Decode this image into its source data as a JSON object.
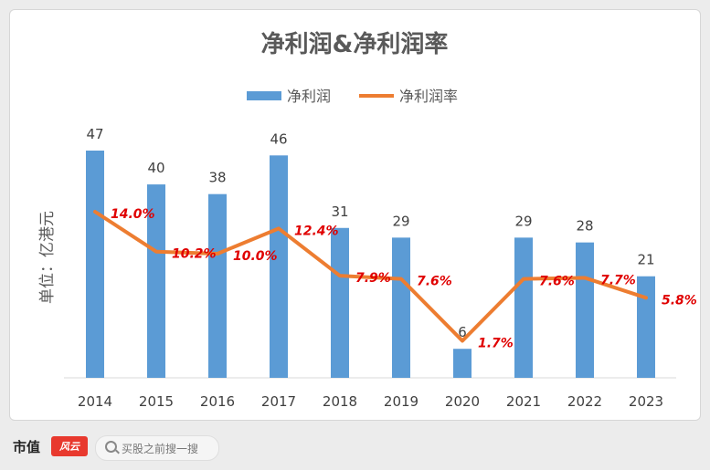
{
  "chart_data": {
    "type": "bar+line",
    "title": "净利润&净利润率",
    "ylabel": "单位：亿港元",
    "categories": [
      "2014",
      "2015",
      "2016",
      "2017",
      "2018",
      "2019",
      "2020",
      "2021",
      "2022",
      "2023"
    ],
    "series": [
      {
        "name": "净利润",
        "type": "bar",
        "color": "#5b9bd5",
        "values": [
          47,
          40,
          38,
          46,
          31,
          29,
          6,
          29,
          28,
          21
        ],
        "labels": [
          "47",
          "40",
          "38",
          "46",
          "31",
          "29",
          "6",
          "29",
          "28",
          "21"
        ]
      },
      {
        "name": "净利润率",
        "type": "line",
        "color": "#ed7d31",
        "values": [
          14.0,
          10.2,
          10.0,
          12.4,
          7.9,
          7.6,
          1.7,
          7.6,
          7.7,
          5.8
        ],
        "labels": [
          "14.0%",
          "10.2%",
          "10.0%",
          "12.4%",
          "7.9%",
          "7.6%",
          "1.7%",
          "7.6%",
          "7.7%",
          "5.8%"
        ]
      }
    ],
    "legend_position": "top-center",
    "grid": false,
    "label_color": "#e00000"
  },
  "footer": {
    "brand": "市值",
    "brand_mark": "风云",
    "search_placeholder": "买股之前搜一搜",
    "search_icon": "search-icon"
  }
}
